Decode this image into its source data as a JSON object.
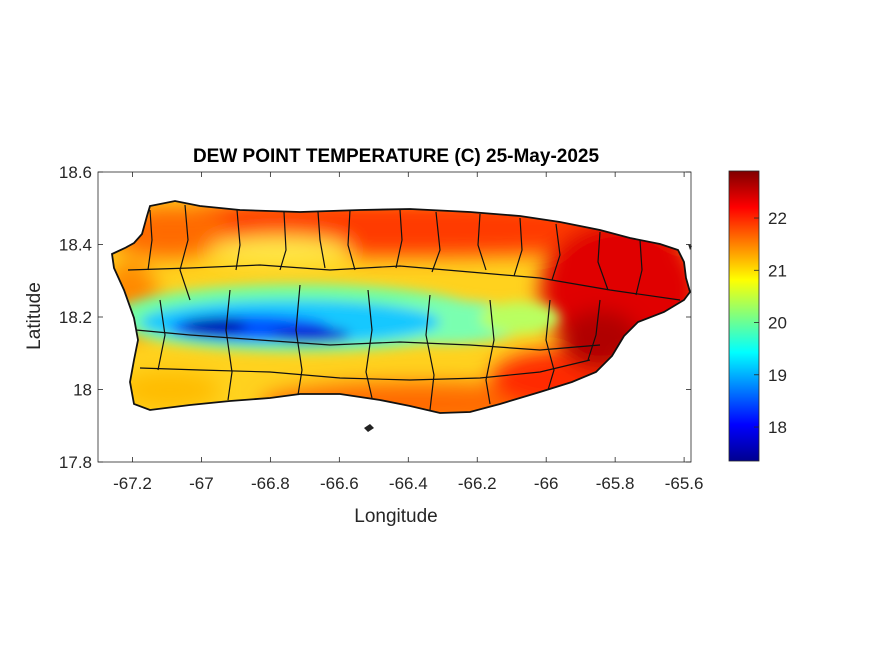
{
  "chart_data": {
    "type": "heatmap",
    "title": "DEW POINT TEMPERATURE (C) 25-May-2025",
    "xlabel": "Longitude",
    "ylabel": "Latitude",
    "xlim": [
      -67.3,
      -65.58
    ],
    "ylim": [
      17.8,
      18.6
    ],
    "x_ticks": [
      "-67.2",
      "-67",
      "-66.8",
      "-66.6",
      "-66.4",
      "-66.2",
      "-66",
      "-65.8",
      "-65.6"
    ],
    "y_ticks": [
      "18.6",
      "18.4",
      "18.2",
      "18",
      "17.8"
    ],
    "colorbar": {
      "colormap": "jet",
      "range": [
        17.35,
        22.9
      ],
      "ticks": [
        "22",
        "21",
        "20",
        "19",
        "18"
      ]
    },
    "region": "Puerto Rico",
    "grid": false,
    "field_features": [
      {
        "feature": "minimum",
        "lon": -66.78,
        "lat": 18.16,
        "value": 17.6
      },
      {
        "feature": "cool band",
        "lon": -66.45,
        "lat": 18.21,
        "value": 19.2
      },
      {
        "feature": "maximum",
        "lon": -65.9,
        "lat": 18.1,
        "value": 22.8
      },
      {
        "feature": "northern coast",
        "lon": -66.3,
        "lat": 18.43,
        "value": 22.2
      },
      {
        "feature": "southern coast",
        "lon": -66.6,
        "lat": 18.0,
        "value": 21.3
      }
    ]
  }
}
